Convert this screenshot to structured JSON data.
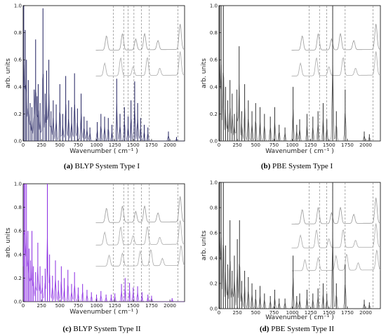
{
  "chart_data": [
    {
      "type": "line",
      "panel_letter": "(a)",
      "caption": "BLYP System Type I",
      "xlabel": "Wavenumber ( cm⁻¹ )",
      "ylabel": "arb. units",
      "xlim": [
        0,
        2200
      ],
      "ylim": [
        0,
        1.0
      ],
      "xticks": [
        0,
        250,
        500,
        750,
        1000,
        1250,
        1500,
        1750,
        2000
      ],
      "yticks": [
        "0.0",
        "0.2",
        "0.4",
        "0.6",
        "0.8",
        "1.0"
      ],
      "line_color": "#1f1f5e",
      "peaks": [
        [
          8,
          1.0
        ],
        [
          28,
          0.82
        ],
        [
          45,
          0.6
        ],
        [
          70,
          0.45
        ],
        [
          95,
          0.28
        ],
        [
          120,
          0.25
        ],
        [
          150,
          0.38
        ],
        [
          170,
          0.75
        ],
        [
          190,
          0.33
        ],
        [
          205,
          0.42
        ],
        [
          230,
          0.28
        ],
        [
          270,
          0.98
        ],
        [
          300,
          0.35
        ],
        [
          320,
          0.52
        ],
        [
          350,
          0.6
        ],
        [
          380,
          0.22
        ],
        [
          410,
          0.3
        ],
        [
          450,
          0.27
        ],
        [
          500,
          0.42
        ],
        [
          540,
          0.2
        ],
        [
          580,
          0.48
        ],
        [
          620,
          0.3
        ],
        [
          660,
          0.25
        ],
        [
          700,
          0.5
        ],
        [
          740,
          0.24
        ],
        [
          790,
          0.35
        ],
        [
          830,
          0.18
        ],
        [
          870,
          0.15
        ],
        [
          910,
          0.1
        ],
        [
          1010,
          0.14
        ],
        [
          1060,
          0.2
        ],
        [
          1110,
          0.18
        ],
        [
          1160,
          0.17
        ],
        [
          1210,
          0.12
        ],
        [
          1275,
          0.46
        ],
        [
          1320,
          0.2
        ],
        [
          1380,
          0.25
        ],
        [
          1430,
          0.18
        ],
        [
          1470,
          0.3
        ],
        [
          1520,
          0.44
        ],
        [
          1560,
          0.28
        ],
        [
          1600,
          0.17
        ],
        [
          1650,
          0.12
        ],
        [
          1700,
          0.1
        ],
        [
          1980,
          0.07
        ],
        [
          2090,
          0.03
        ]
      ],
      "dashed_lines_x": [
        1230,
        1370,
        1430,
        1510,
        1610,
        1720,
        2110
      ]
    },
    {
      "type": "line",
      "panel_letter": "(b)",
      "caption": "PBE System Type I",
      "xlabel": "Wavenumber ( cm⁻¹ )",
      "ylabel": "arb. units",
      "xlim": [
        0,
        2200
      ],
      "ylim": [
        0,
        1.0
      ],
      "xticks": [
        0,
        250,
        500,
        750,
        1000,
        1250,
        1500,
        1750,
        2000
      ],
      "yticks": [
        "0.0",
        "0.2",
        "0.4",
        "0.6",
        "0.8",
        "1.0"
      ],
      "line_color": "#333333",
      "peaks": [
        [
          10,
          1.0
        ],
        [
          30,
          1.0
        ],
        [
          60,
          1.0
        ],
        [
          90,
          0.4
        ],
        [
          120,
          0.3
        ],
        [
          150,
          0.45
        ],
        [
          180,
          0.35
        ],
        [
          210,
          0.2
        ],
        [
          245,
          0.38
        ],
        [
          275,
          0.7
        ],
        [
          310,
          0.22
        ],
        [
          350,
          0.42
        ],
        [
          400,
          0.3
        ],
        [
          450,
          0.22
        ],
        [
          500,
          0.28
        ],
        [
          560,
          0.25
        ],
        [
          620,
          0.2
        ],
        [
          700,
          0.18
        ],
        [
          760,
          0.25
        ],
        [
          820,
          0.12
        ],
        [
          900,
          0.1
        ],
        [
          1010,
          0.4
        ],
        [
          1060,
          0.12
        ],
        [
          1100,
          0.16
        ],
        [
          1200,
          0.2
        ],
        [
          1280,
          0.18
        ],
        [
          1350,
          0.22
        ],
        [
          1420,
          0.28
        ],
        [
          1470,
          0.16
        ],
        [
          1550,
          1.0
        ],
        [
          1600,
          0.22
        ],
        [
          1720,
          0.38
        ],
        [
          1980,
          0.07
        ],
        [
          2050,
          0.05
        ]
      ],
      "dashed_lines_x": [
        1230,
        1370,
        1470,
        1550,
        1720,
        2100
      ]
    },
    {
      "type": "line",
      "panel_letter": "(c)",
      "caption": "BLYP System Type II",
      "xlabel": "Wavenumber ( cm⁻¹ )",
      "ylabel": "arb. units",
      "xlim": [
        0,
        2200
      ],
      "ylim": [
        0,
        1.0
      ],
      "xticks": [
        0,
        250,
        500,
        750,
        1000,
        1250,
        1500,
        1750,
        2000
      ],
      "yticks": [
        "0.0",
        "0.2",
        "0.4",
        "0.6",
        "0.8",
        "1.0"
      ],
      "line_color": "#8a2be2",
      "peaks": [
        [
          10,
          1.0
        ],
        [
          25,
          1.0
        ],
        [
          45,
          1.0
        ],
        [
          65,
          0.6
        ],
        [
          80,
          0.45
        ],
        [
          100,
          0.35
        ],
        [
          120,
          0.6
        ],
        [
          140,
          0.3
        ],
        [
          170,
          0.25
        ],
        [
          200,
          0.5
        ],
        [
          230,
          0.3
        ],
        [
          260,
          0.22
        ],
        [
          300,
          0.28
        ],
        [
          330,
          1.0
        ],
        [
          360,
          0.4
        ],
        [
          400,
          0.22
        ],
        [
          440,
          0.35
        ],
        [
          480,
          0.18
        ],
        [
          520,
          0.3
        ],
        [
          560,
          0.2
        ],
        [
          610,
          0.27
        ],
        [
          660,
          0.15
        ],
        [
          700,
          0.25
        ],
        [
          750,
          0.12
        ],
        [
          810,
          0.15
        ],
        [
          870,
          0.1
        ],
        [
          930,
          0.08
        ],
        [
          1000,
          0.06
        ],
        [
          1060,
          0.09
        ],
        [
          1130,
          0.06
        ],
        [
          1200,
          0.06
        ],
        [
          1250,
          0.07
        ],
        [
          1340,
          0.15
        ],
        [
          1390,
          0.2
        ],
        [
          1450,
          0.16
        ],
        [
          1500,
          0.12
        ],
        [
          1560,
          0.13
        ],
        [
          1620,
          0.08
        ],
        [
          1700,
          0.06
        ],
        [
          1750,
          0.05
        ],
        [
          2030,
          0.03
        ]
      ],
      "dashed_lines_x": [
        1230,
        1370,
        1430,
        1510,
        1610,
        1720,
        2110
      ]
    },
    {
      "type": "line",
      "panel_letter": "(d)",
      "caption": "PBE System Type II",
      "xlabel": "Wavenumber ( cm⁻¹ )",
      "ylabel": "arb. units",
      "xlim": [
        0,
        2200
      ],
      "ylim": [
        0,
        1.0
      ],
      "xticks": [
        0,
        250,
        500,
        750,
        1000,
        1250,
        1500,
        1750,
        2000
      ],
      "yticks": [
        "0.0",
        "0.2",
        "0.4",
        "0.6",
        "0.8",
        "1.0"
      ],
      "line_color": "#333333",
      "peaks": [
        [
          10,
          1.0
        ],
        [
          30,
          1.0
        ],
        [
          60,
          1.0
        ],
        [
          90,
          0.5
        ],
        [
          120,
          0.35
        ],
        [
          150,
          0.7
        ],
        [
          180,
          0.3
        ],
        [
          210,
          0.42
        ],
        [
          250,
          0.55
        ],
        [
          280,
          0.7
        ],
        [
          310,
          0.22
        ],
        [
          350,
          0.3
        ],
        [
          400,
          0.25
        ],
        [
          450,
          0.2
        ],
        [
          500,
          0.15
        ],
        [
          560,
          0.18
        ],
        [
          620,
          0.12
        ],
        [
          700,
          0.1
        ],
        [
          760,
          0.15
        ],
        [
          820,
          0.08
        ],
        [
          900,
          0.08
        ],
        [
          1010,
          0.42
        ],
        [
          1060,
          0.1
        ],
        [
          1100,
          0.12
        ],
        [
          1200,
          0.15
        ],
        [
          1280,
          0.12
        ],
        [
          1350,
          0.16
        ],
        [
          1420,
          0.2
        ],
        [
          1470,
          0.12
        ],
        [
          1550,
          1.0
        ],
        [
          1600,
          0.2
        ],
        [
          1720,
          0.35
        ],
        [
          1980,
          0.07
        ],
        [
          2050,
          0.05
        ]
      ],
      "dashed_lines_x": [
        1230,
        1370,
        1470,
        1550,
        1720,
        2100
      ]
    }
  ]
}
